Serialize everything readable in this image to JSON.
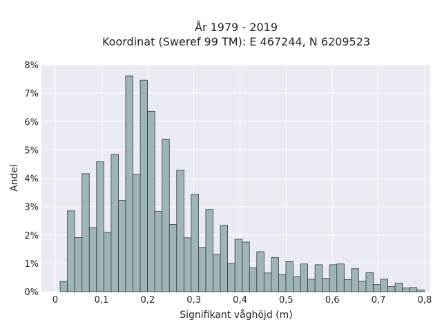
{
  "chart_data": {
    "type": "bar",
    "title": [
      "År 1979 - 2019",
      "Koordinat (Sweref 99 TM): E 467244, N 6209523"
    ],
    "xlabel": "Signifikant våghöjd (m)",
    "ylabel": "Andel",
    "xlim": [
      -0.03,
      0.812
    ],
    "ylim": [
      0,
      0.08
    ],
    "x_ticks": [
      0,
      0.1,
      0.2,
      0.3,
      0.4,
      0.5,
      0.6,
      0.7,
      0.8
    ],
    "x_tick_labels": [
      "0",
      "0,1",
      "0,2",
      "0,3",
      "0,4",
      "0,5",
      "0,6",
      "0,7",
      "0,8"
    ],
    "y_ticks": [
      0,
      0.01,
      0.02,
      0.03,
      0.04,
      0.05,
      0.06,
      0.07,
      0.08
    ],
    "y_tick_labels": [
      "0%",
      "1%",
      "2%",
      "3%",
      "4%",
      "5%",
      "6%",
      "7%",
      "8%"
    ],
    "grid": true,
    "bin_width": 0.01577,
    "bin_start": 0.0105,
    "values": [
      0.0036,
      0.0285,
      0.0191,
      0.0416,
      0.0226,
      0.0458,
      0.0209,
      0.0484,
      0.0322,
      0.0761,
      0.0414,
      0.0746,
      0.0636,
      0.0283,
      0.0537,
      0.0237,
      0.0428,
      0.019,
      0.0343,
      0.0156,
      0.029,
      0.0132,
      0.0234,
      0.01,
      0.0185,
      0.0175,
      0.0084,
      0.0141,
      0.0066,
      0.012,
      0.0061,
      0.0106,
      0.0053,
      0.0098,
      0.0044,
      0.0095,
      0.0047,
      0.0095,
      0.0098,
      0.0043,
      0.0081,
      0.0037,
      0.0067,
      0.0025,
      0.0044,
      0.0018,
      0.003,
      0.0013,
      0.0015,
      0.0006
    ],
    "colors": {
      "bar_fill": "#9fb5b5",
      "bar_edge": "#2e3838",
      "plot_bg": "#eaeaf2",
      "grid": "#ffffff",
      "text": "#222222"
    }
  }
}
